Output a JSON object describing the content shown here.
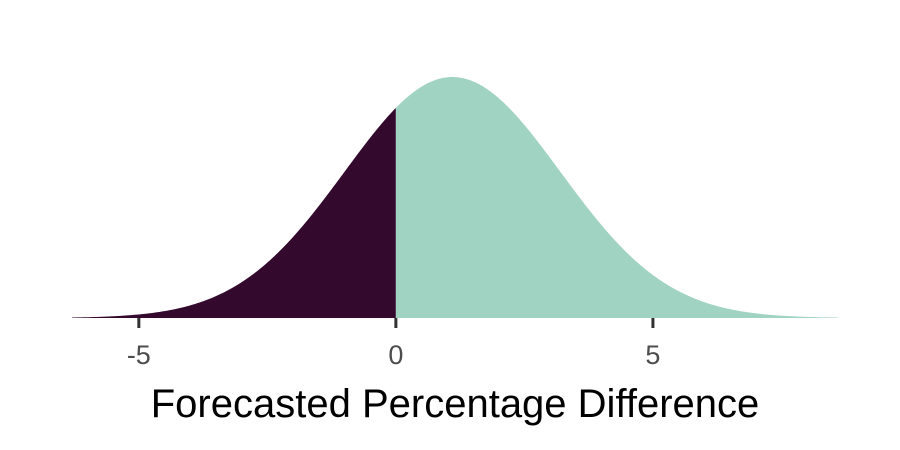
{
  "chart_data": {
    "type": "area",
    "title": "",
    "xlabel": "Forecasted Percentage Difference",
    "ylabel": "",
    "xlim": [
      -6.3,
      8.6
    ],
    "distribution": {
      "shape": "normal",
      "mean": 1.1,
      "sd": 2.1
    },
    "split_at": 0,
    "regions": [
      {
        "from": -6.3,
        "to": 0,
        "color": "#330a2e"
      },
      {
        "from": 0,
        "to": 8.6,
        "color": "#a1d3c2"
      }
    ],
    "x_ticks": [
      -5,
      0,
      5
    ],
    "x_tick_labels": [
      "-5",
      "0",
      "5"
    ],
    "grid": false,
    "legend": "none"
  }
}
